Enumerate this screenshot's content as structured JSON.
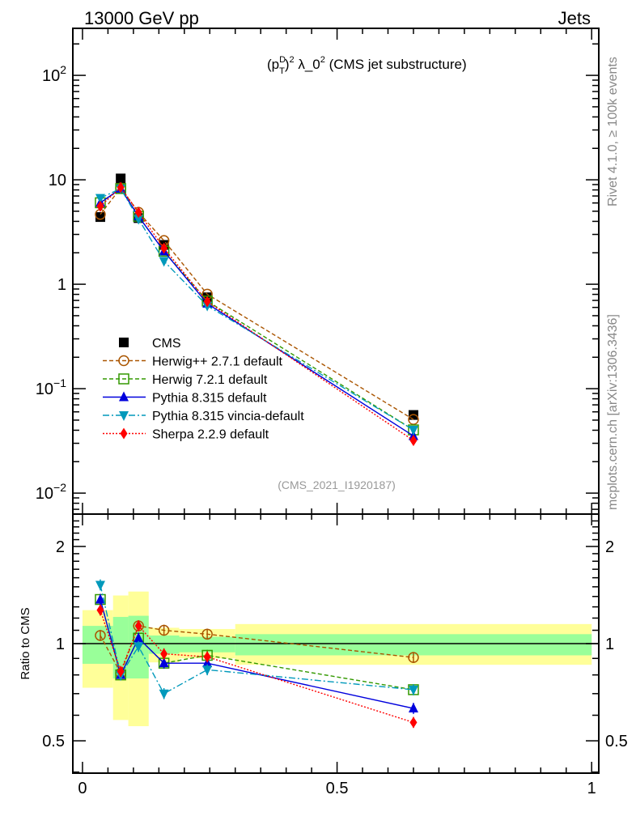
{
  "header": {
    "left": "13000 GeV pp",
    "right": "Jets"
  },
  "side": {
    "rivet": "Rivet 4.1.0, ≥ 100k events",
    "mcplots": "mcplots.cern.ch [arXiv:1306.3436]"
  },
  "chart_data": {
    "type": "line",
    "title": "(p_T^D)^2 λ_0^2 (CMS jet substructure)",
    "title_parts": {
      "p": "(p",
      "sup1": "D",
      "sub1": "T",
      "rest1": ")",
      "sup2": "2",
      "rest2": " λ_0",
      "sup3": "2",
      "rest3": " (CMS jet substructure)"
    },
    "analysis": "(CMS_2021_I1920187)",
    "xlim": [
      -0.019,
      1.014
    ],
    "ylim": [
      0.0063,
      282
    ],
    "yscale": "log",
    "x_ticks": [
      "0",
      "0.5",
      "1"
    ],
    "y_ticks": [
      {
        "v": 0.01,
        "label": "10",
        "exp": "−2"
      },
      {
        "v": 0.1,
        "label": "10",
        "exp": "−1"
      },
      {
        "v": 1,
        "label": "1",
        "exp": ""
      },
      {
        "v": 10,
        "label": "10",
        "exp": ""
      },
      {
        "v": 100,
        "label": "10",
        "exp": "2"
      }
    ],
    "bin_edges": [
      0,
      0.06,
      0.09,
      0.13,
      0.19,
      0.3,
      1.0
    ],
    "x": [
      0.035,
      0.075,
      0.11,
      0.16,
      0.245,
      0.65
    ],
    "data": {
      "name": "CMS",
      "values": [
        4.4,
        10.3,
        4.3,
        2.38,
        0.75,
        0.056
      ]
    },
    "series": [
      {
        "name": "Herwig++ 2.7.1 default",
        "color": "#aa5500",
        "marker": "circle",
        "dash": "5,3",
        "ratio": [
          1.06,
          0.81,
          1.135,
          1.1,
          1.07,
          0.906
        ]
      },
      {
        "name": "Herwig 7.2.1 default",
        "color": "#339900",
        "marker": "square",
        "dash": "5,3",
        "ratio": [
          1.37,
          0.8,
          1.04,
          0.87,
          0.92,
          0.72
        ]
      },
      {
        "name": "Pythia 8.315 default",
        "color": "#0000dd",
        "marker": "triangle-up",
        "dash": "",
        "ratio": [
          1.37,
          0.8,
          1.04,
          0.87,
          0.87,
          0.63
        ]
      },
      {
        "name": "Pythia 8.315 vincia-default",
        "color": "#0099bb",
        "marker": "triangle-down",
        "dash": "8,3,2,3",
        "ratio": [
          1.52,
          0.8,
          0.98,
          0.7,
          0.83,
          0.72
        ]
      },
      {
        "name": "Sherpa 2.2.9 default",
        "color": "#ff0000",
        "marker": "diamond",
        "dash": "2,2",
        "ratio": [
          1.27,
          0.82,
          1.135,
          0.93,
          0.91,
          0.57
        ]
      }
    ],
    "ratio_panel": {
      "ylabel": "Ratio to CMS",
      "ylim": [
        0.397,
        2.52
      ],
      "y_ticks": [
        {
          "v": 0.5,
          "label": "0.5"
        },
        {
          "v": 1,
          "label": "1"
        },
        {
          "v": 2,
          "label": "2"
        }
      ],
      "band_yellow": [
        [
          0.73,
          1.27
        ],
        [
          0.58,
          1.41
        ],
        [
          0.555,
          1.45
        ],
        [
          0.875,
          1.12
        ],
        [
          0.9,
          1.11
        ],
        [
          0.86,
          1.15
        ]
      ],
      "band_green": [
        [
          0.866,
          1.135
        ],
        [
          0.78,
          1.21
        ],
        [
          0.78,
          1.22
        ],
        [
          0.93,
          1.06
        ],
        [
          0.94,
          1.05
        ],
        [
          0.92,
          1.07
        ]
      ]
    }
  }
}
